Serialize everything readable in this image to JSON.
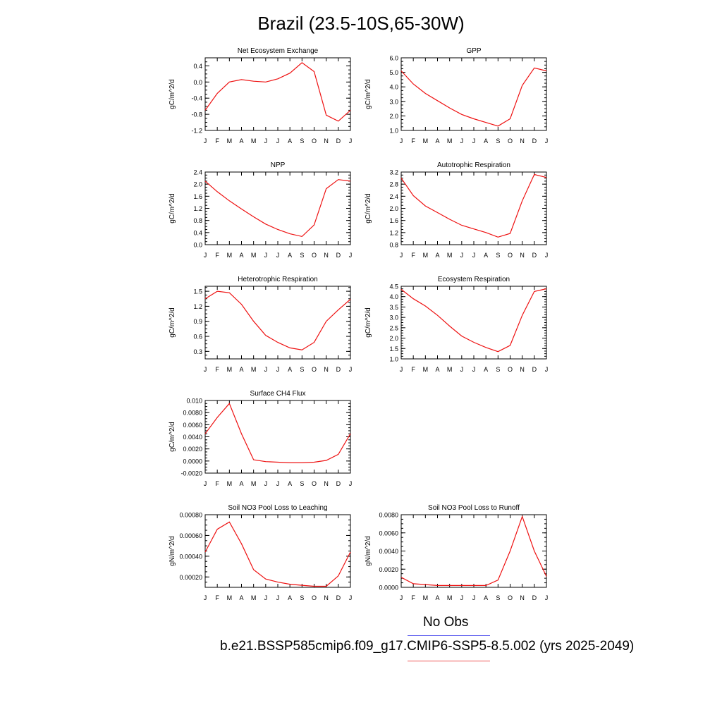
{
  "title": "Brazil (23.5-10S,65-30W)",
  "legend": {
    "obs_label": "No Obs",
    "case_label": "b.e21.BSSP585cmip6.f09_g17.CMIP6-SSP5-8.5.002 (yrs 2025-2049)",
    "obs_color": "#5555ee",
    "case_color": "#ee5555"
  },
  "line_color": "#ee1111",
  "chart_data": [
    {
      "type": "line",
      "title": "Net Ecosystem Exchange",
      "ylabel": "gC/m^2/d",
      "x": [
        "J",
        "F",
        "M",
        "A",
        "M",
        "J",
        "J",
        "A",
        "S",
        "O",
        "N",
        "D",
        "J"
      ],
      "ylim": [
        -1.2,
        0.6
      ],
      "yticks": [
        "-1.2",
        "-0.8",
        "-0.4",
        "0.0",
        "0.4"
      ],
      "ytick_values": [
        -1.2,
        -0.8,
        -0.4,
        0.0,
        0.4
      ],
      "series": [
        {
          "values": [
            -0.7,
            -0.28,
            0.0,
            0.06,
            0.02,
            0.0,
            0.08,
            0.22,
            0.48,
            0.26,
            -0.82,
            -0.97,
            -0.7
          ]
        }
      ]
    },
    {
      "type": "line",
      "title": "GPP",
      "ylabel": "gC/m^2/d",
      "x": [
        "J",
        "F",
        "M",
        "A",
        "M",
        "J",
        "J",
        "A",
        "S",
        "O",
        "N",
        "D",
        "J"
      ],
      "ylim": [
        1.0,
        6.0
      ],
      "yticks": [
        "1.0",
        "2.0",
        "3.0",
        "4.0",
        "5.0",
        "6.0"
      ],
      "ytick_values": [
        1.0,
        2.0,
        3.0,
        4.0,
        5.0,
        6.0
      ],
      "series": [
        {
          "values": [
            5.1,
            4.2,
            3.55,
            3.05,
            2.55,
            2.1,
            1.8,
            1.55,
            1.3,
            1.8,
            4.1,
            5.3,
            5.1
          ]
        }
      ]
    },
    {
      "type": "line",
      "title": "NPP",
      "ylabel": "gC/m^2/d",
      "x": [
        "J",
        "F",
        "M",
        "A",
        "M",
        "J",
        "J",
        "A",
        "S",
        "O",
        "N",
        "D",
        "J"
      ],
      "ylim": [
        0.0,
        2.4
      ],
      "yticks": [
        "0.0",
        "0.4",
        "0.8",
        "1.2",
        "1.6",
        "2.0",
        "2.4"
      ],
      "ytick_values": [
        0.0,
        0.4,
        0.8,
        1.2,
        1.6,
        2.0,
        2.4
      ],
      "series": [
        {
          "values": [
            2.1,
            1.75,
            1.45,
            1.18,
            0.92,
            0.68,
            0.5,
            0.36,
            0.27,
            0.65,
            1.85,
            2.15,
            2.1
          ]
        }
      ]
    },
    {
      "type": "line",
      "title": "Autotrophic Respiration",
      "ylabel": "gC/m^2/d",
      "x": [
        "J",
        "F",
        "M",
        "A",
        "M",
        "J",
        "J",
        "A",
        "S",
        "O",
        "N",
        "D",
        "J"
      ],
      "ylim": [
        0.8,
        3.2
      ],
      "yticks": [
        "0.8",
        "1.2",
        "1.6",
        "2.0",
        "2.4",
        "2.8",
        "3.2"
      ],
      "ytick_values": [
        0.8,
        1.2,
        1.6,
        2.0,
        2.4,
        2.8,
        3.2
      ],
      "series": [
        {
          "values": [
            3.0,
            2.42,
            2.08,
            1.86,
            1.64,
            1.44,
            1.32,
            1.2,
            1.05,
            1.17,
            2.25,
            3.12,
            3.02
          ]
        }
      ]
    },
    {
      "type": "line",
      "title": "Heterotrophic Respiration",
      "ylabel": "gC/m^2/d",
      "x": [
        "J",
        "F",
        "M",
        "A",
        "M",
        "J",
        "J",
        "A",
        "S",
        "O",
        "N",
        "D",
        "J"
      ],
      "ylim": [
        0.15,
        1.6
      ],
      "yticks": [
        "0.3",
        "0.6",
        "0.9",
        "1.2",
        "1.5"
      ],
      "ytick_values": [
        0.3,
        0.6,
        0.9,
        1.2,
        1.5
      ],
      "series": [
        {
          "values": [
            1.35,
            1.5,
            1.47,
            1.24,
            0.9,
            0.62,
            0.48,
            0.37,
            0.33,
            0.48,
            0.9,
            1.13,
            1.34
          ]
        }
      ]
    },
    {
      "type": "line",
      "title": "Ecosystem Respiration",
      "ylabel": "gC/m^2/d",
      "x": [
        "J",
        "F",
        "M",
        "A",
        "M",
        "J",
        "J",
        "A",
        "S",
        "O",
        "N",
        "D",
        "J"
      ],
      "ylim": [
        1.0,
        4.5
      ],
      "yticks": [
        "1.0",
        "1.5",
        "2.0",
        "2.5",
        "3.0",
        "3.5",
        "4.0",
        "4.5"
      ],
      "ytick_values": [
        1.0,
        1.5,
        2.0,
        2.5,
        3.0,
        3.5,
        4.0,
        4.5
      ],
      "series": [
        {
          "values": [
            4.35,
            3.9,
            3.55,
            3.1,
            2.58,
            2.1,
            1.8,
            1.55,
            1.35,
            1.65,
            3.1,
            4.25,
            4.38
          ]
        }
      ]
    },
    {
      "type": "line",
      "title": "Surface CH4 Flux",
      "ylabel": "gC/m^2/d",
      "x": [
        "J",
        "F",
        "M",
        "A",
        "M",
        "J",
        "J",
        "A",
        "S",
        "O",
        "N",
        "D",
        "J"
      ],
      "ylim": [
        -0.002,
        0.01
      ],
      "yticks": [
        "-0.0020",
        "0.0000",
        "0.0020",
        "0.0040",
        "0.0060",
        "0.0080",
        "0.010"
      ],
      "ytick_values": [
        -0.002,
        0.0,
        0.002,
        0.004,
        0.006,
        0.008,
        0.01
      ],
      "series": [
        {
          "values": [
            0.0045,
            0.0072,
            0.0095,
            0.0045,
            0.0002,
            -0.0001,
            -0.0002,
            -0.0003,
            -0.0003,
            -0.0002,
            0.0001,
            0.0011,
            0.0045
          ]
        }
      ]
    },
    {
      "type": "line",
      "title": "Soil NO3 Pool Loss to Leaching",
      "ylabel": "gN/m^2/d",
      "x": [
        "J",
        "F",
        "M",
        "A",
        "M",
        "J",
        "J",
        "A",
        "S",
        "O",
        "N",
        "D",
        "J"
      ],
      "ylim": [
        0.0001,
        0.0008
      ],
      "yticks": [
        "0.00020",
        "0.00040",
        "0.00060",
        "0.00080"
      ],
      "ytick_values": [
        0.0002,
        0.0004,
        0.0006,
        0.0008
      ],
      "series": [
        {
          "values": [
            0.00044,
            0.00066,
            0.00073,
            0.00052,
            0.00027,
            0.00018,
            0.00015,
            0.00013,
            0.00012,
            0.00011,
            0.00011,
            0.00021,
            0.00044
          ]
        }
      ]
    },
    {
      "type": "line",
      "title": "Soil NO3 Pool Loss to Runoff",
      "ylabel": "gN/m^2/d",
      "x": [
        "J",
        "F",
        "M",
        "A",
        "M",
        "J",
        "J",
        "A",
        "S",
        "O",
        "N",
        "D",
        "J"
      ],
      "ylim": [
        0.0,
        0.008
      ],
      "yticks": [
        "0.0000",
        "0.0020",
        "0.0040",
        "0.0060",
        "0.0080"
      ],
      "ytick_values": [
        0.0,
        0.002,
        0.004,
        0.006,
        0.008
      ],
      "series": [
        {
          "values": [
            0.0011,
            0.0004,
            0.0003,
            0.0002,
            0.0002,
            0.0002,
            0.0002,
            0.0002,
            0.0008,
            0.004,
            0.0078,
            0.004,
            0.0012
          ]
        }
      ]
    }
  ]
}
